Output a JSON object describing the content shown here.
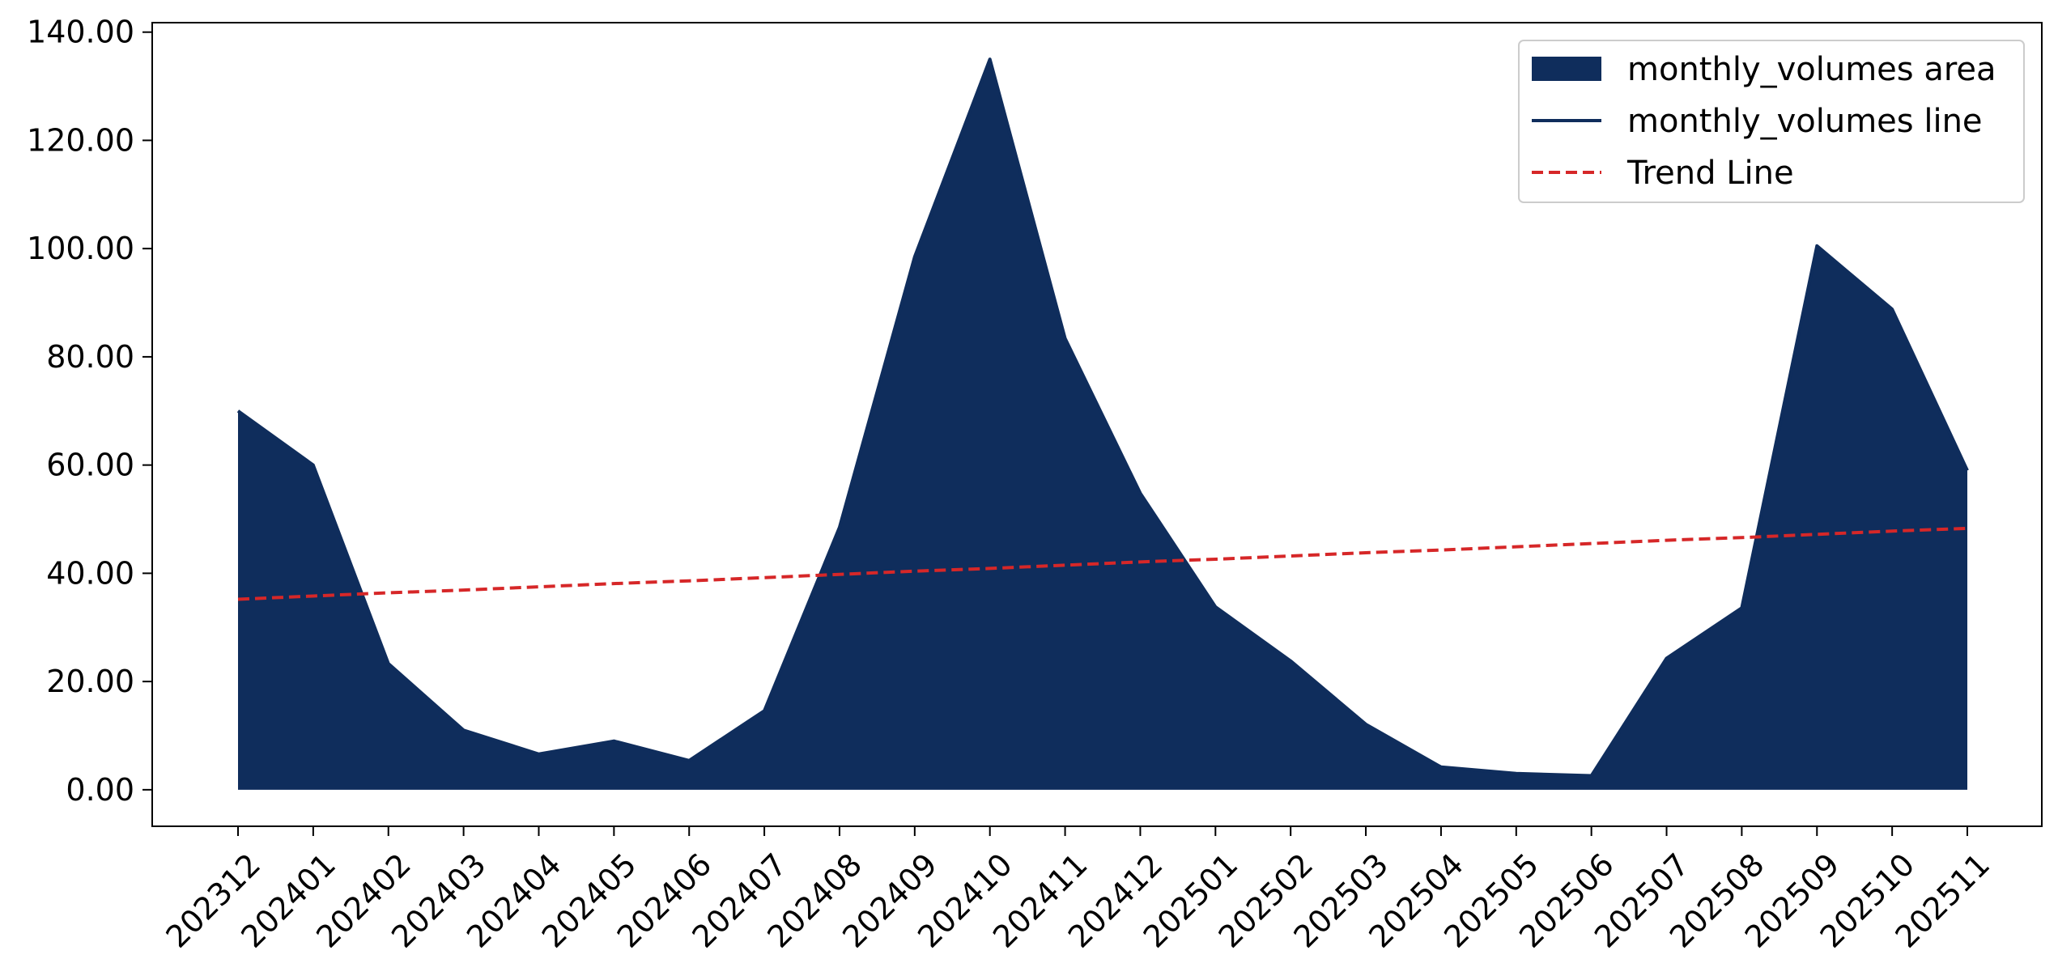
{
  "chart_data": {
    "type": "area",
    "title": "",
    "xlabel": "",
    "ylabel": "",
    "categories": [
      "202312",
      "202401",
      "202402",
      "202403",
      "202404",
      "202405",
      "202406",
      "202407",
      "202408",
      "202409",
      "202410",
      "202411",
      "202412",
      "202501",
      "202502",
      "202503",
      "202504",
      "202505",
      "202506",
      "202507",
      "202508",
      "202509",
      "202510",
      "202511"
    ],
    "series": [
      {
        "name": "monthly_volumes area",
        "kind": "area",
        "color": "#0f2d5c",
        "values": [
          70.0,
          60.0,
          23.3,
          11.0,
          6.6,
          9.0,
          5.4,
          14.6,
          48.5,
          98.5,
          135.0,
          83.4,
          54.8,
          33.8,
          23.8,
          12.1,
          4.2,
          3.0,
          2.6,
          24.3,
          33.6,
          100.5,
          88.8,
          59.0
        ]
      },
      {
        "name": "monthly_volumes line",
        "kind": "line",
        "color": "#0f2d5c",
        "values": [
          70.0,
          60.0,
          23.3,
          11.0,
          6.6,
          9.0,
          5.4,
          14.6,
          48.5,
          98.5,
          135.0,
          83.4,
          54.8,
          33.8,
          23.8,
          12.1,
          4.2,
          3.0,
          2.6,
          24.3,
          33.6,
          100.5,
          88.8,
          59.0
        ]
      },
      {
        "name": "Trend Line",
        "kind": "dashed-line",
        "color": "#d62728",
        "values": [
          35.2,
          35.8,
          36.4,
          36.9,
          37.5,
          38.1,
          38.6,
          39.2,
          39.8,
          40.4,
          40.9,
          41.5,
          42.1,
          42.6,
          43.2,
          43.8,
          44.3,
          44.9,
          45.5,
          46.1,
          46.6,
          47.2,
          47.8,
          48.3
        ]
      }
    ],
    "ylim": [
      -6.75,
      141.75
    ],
    "yticks": [
      0,
      20,
      40,
      60,
      80,
      100,
      120,
      140
    ],
    "ytick_labels": [
      "0.00",
      "20.00",
      "40.00",
      "60.00",
      "80.00",
      "100.00",
      "120.00",
      "140.00"
    ],
    "grid": false,
    "legend_position": "top-right",
    "xtick_rotation": 45
  }
}
